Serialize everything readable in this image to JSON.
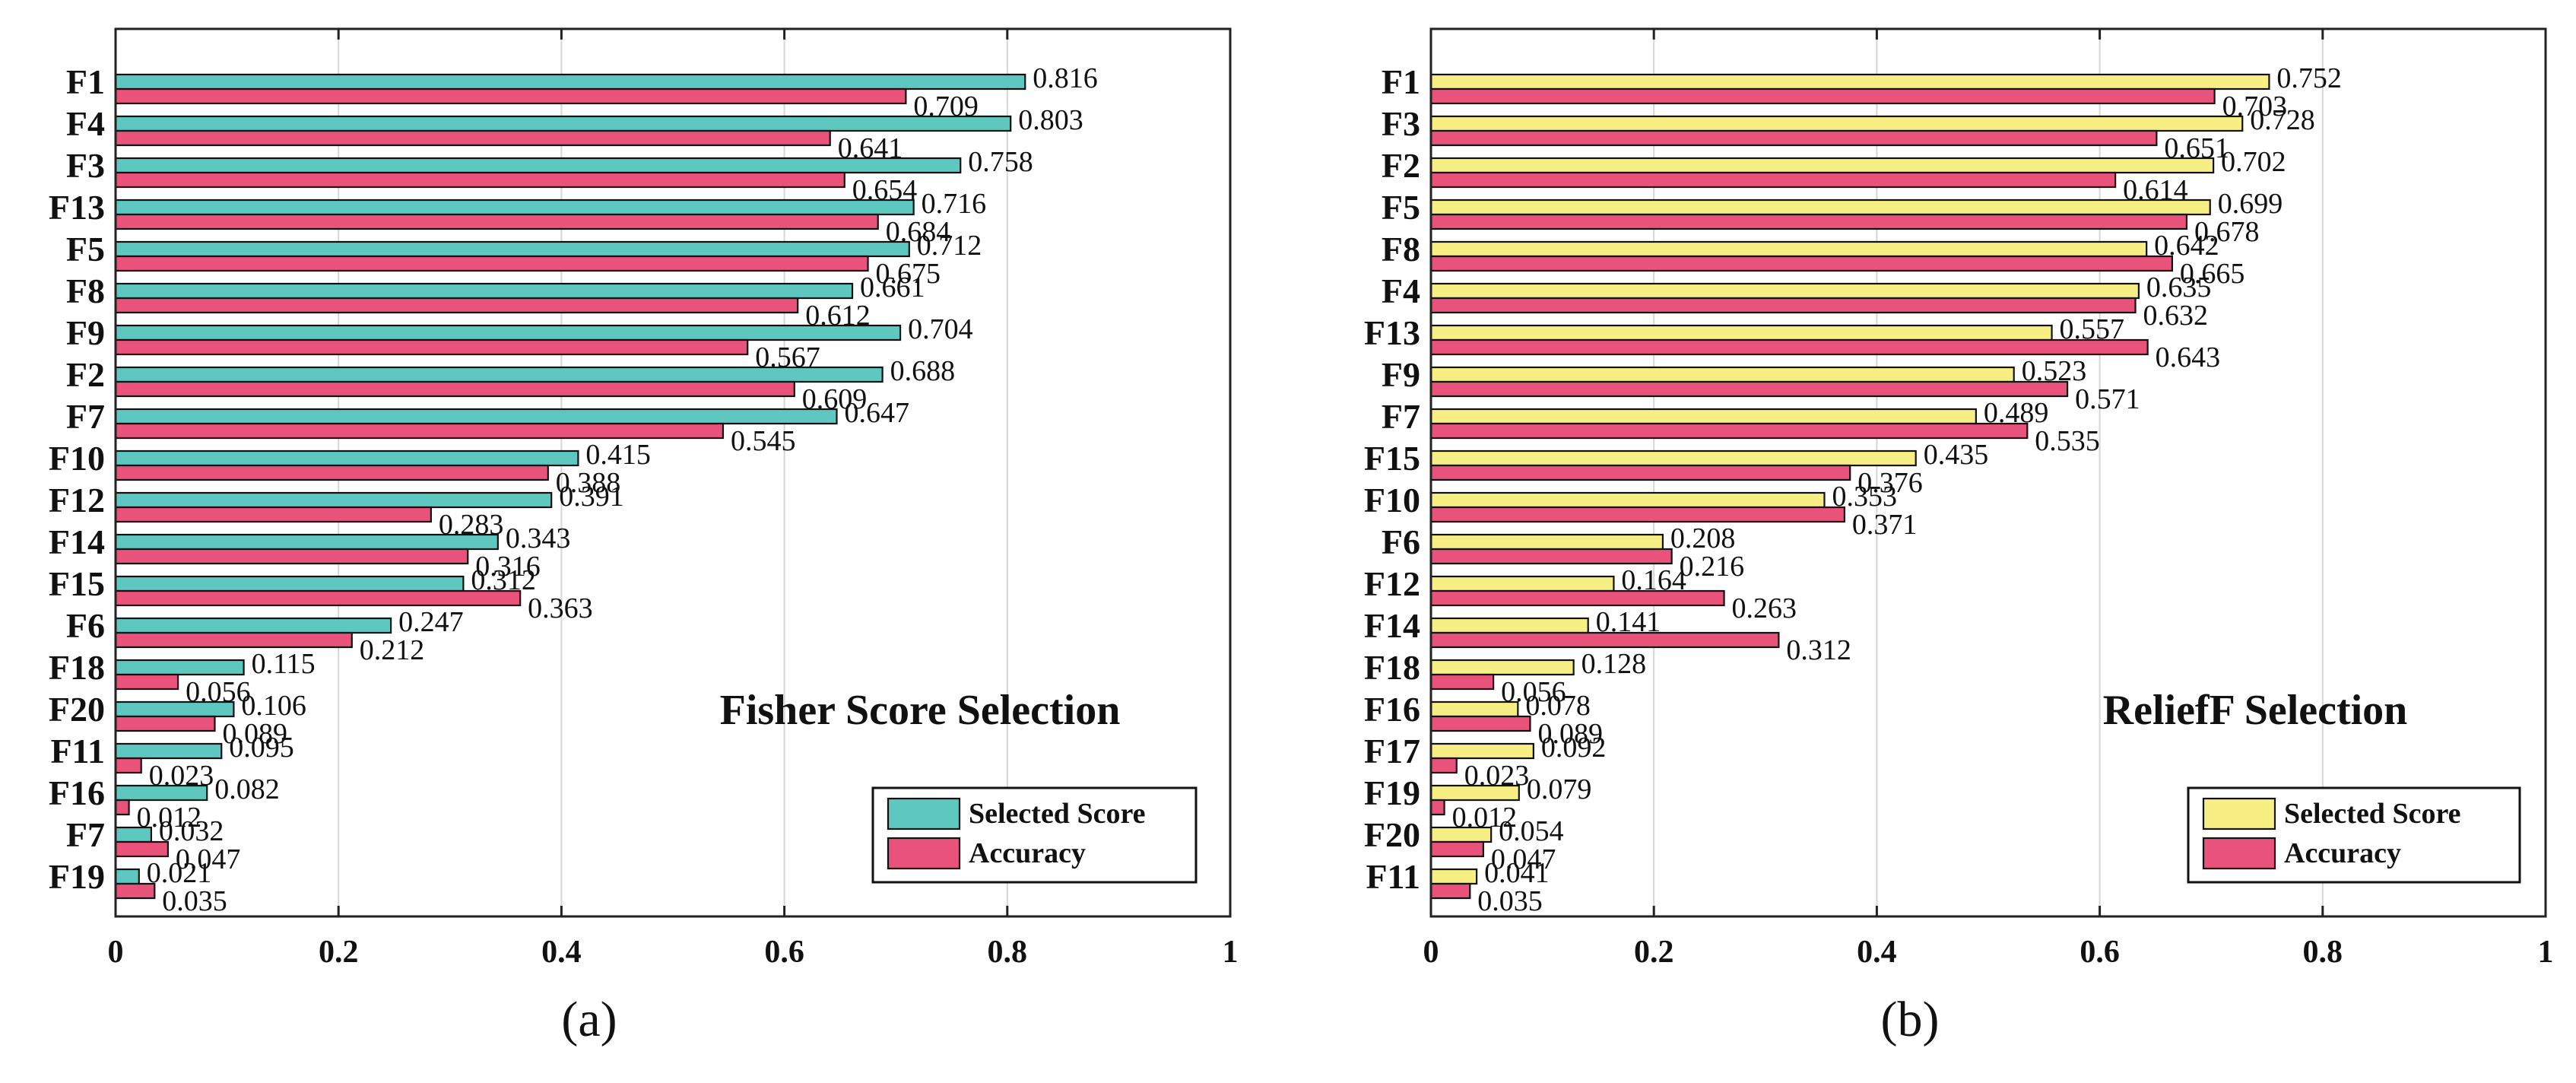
{
  "chart_data": [
    {
      "panel": "a",
      "type": "bar",
      "orientation": "horizontal",
      "title": "Fisher Score Selection",
      "caption": "(a)",
      "categories": [
        "F1",
        "F4",
        "F3",
        "F13",
        "F5",
        "F8",
        "F9",
        "F2",
        "F7",
        "F10",
        "F12",
        "F14",
        "F15",
        "F6",
        "F18",
        "F20",
        "F11",
        "F16",
        "F7",
        "F19"
      ],
      "series": [
        {
          "name": "Selected Score",
          "color": "#5ec8c0",
          "values": [
            0.816,
            0.803,
            0.758,
            0.716,
            0.712,
            0.661,
            0.704,
            0.688,
            0.647,
            0.415,
            0.391,
            0.343,
            0.312,
            0.247,
            0.115,
            0.106,
            0.095,
            0.082,
            0.032,
            0.021
          ]
        },
        {
          "name": "Accuracy",
          "color": "#e9527a",
          "values": [
            0.709,
            0.641,
            0.654,
            0.684,
            0.675,
            0.612,
            0.567,
            0.609,
            0.545,
            0.388,
            0.283,
            0.316,
            0.363,
            0.212,
            0.056,
            0.089,
            0.023,
            0.012,
            0.047,
            0.035
          ]
        }
      ],
      "xlim": [
        0,
        1
      ],
      "xticks": [
        "0",
        "0.2",
        "0.4",
        "0.6",
        "0.8",
        "1"
      ],
      "grid": true,
      "legend": "bottom-right"
    },
    {
      "panel": "b",
      "type": "bar",
      "orientation": "horizontal",
      "title": "ReliefF Selection",
      "caption": "(b)",
      "categories": [
        "F1",
        "F3",
        "F2",
        "F5",
        "F8",
        "F4",
        "F13",
        "F9",
        "F7",
        "F15",
        "F10",
        "F6",
        "F12",
        "F14",
        "F18",
        "F16",
        "F17",
        "F19",
        "F20",
        "F11"
      ],
      "series": [
        {
          "name": "Selected Score",
          "color": "#f7ee84",
          "values": [
            0.752,
            0.728,
            0.702,
            0.699,
            0.642,
            0.635,
            0.557,
            0.523,
            0.489,
            0.435,
            0.353,
            0.208,
            0.164,
            0.141,
            0.128,
            0.078,
            0.092,
            0.079,
            0.054,
            0.041
          ]
        },
        {
          "name": "Accuracy",
          "color": "#e9527a",
          "values": [
            0.703,
            0.651,
            0.614,
            0.678,
            0.665,
            0.632,
            0.643,
            0.571,
            0.535,
            0.376,
            0.371,
            0.216,
            0.263,
            0.312,
            0.056,
            0.089,
            0.023,
            0.012,
            0.047,
            0.035
          ]
        }
      ],
      "xlim": [
        0,
        1
      ],
      "xticks": [
        "0",
        "0.2",
        "0.4",
        "0.6",
        "0.8",
        "1"
      ],
      "grid": true,
      "legend": "bottom-right"
    }
  ]
}
